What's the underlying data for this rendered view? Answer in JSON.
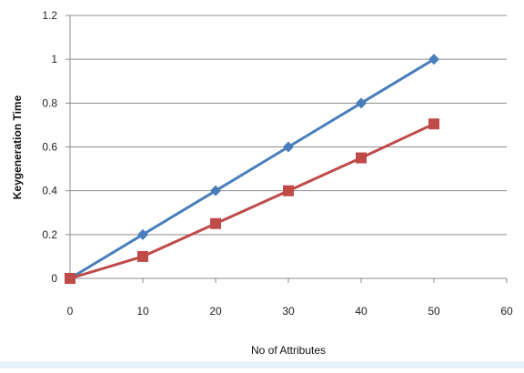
{
  "chart_data": {
    "type": "line",
    "title": "",
    "xlabel": "No of Attributes",
    "ylabel": "Keygeneration Time",
    "xlim": [
      0,
      60
    ],
    "ylim": [
      0,
      1.2
    ],
    "x_ticks": [
      "0",
      "10",
      "20",
      "30",
      "40",
      "50",
      "60"
    ],
    "y_ticks": [
      "0",
      "0.2",
      "0.4",
      "0.6",
      "0.8",
      "1",
      "1.2"
    ],
    "grid": "horizontal",
    "legend": "none",
    "series": [
      {
        "color": "#4a7ebb",
        "marker": "diamond",
        "x": [
          0,
          10,
          20,
          30,
          40,
          50
        ],
        "y": [
          0,
          0.2,
          0.4,
          0.6,
          0.8,
          1.0
        ]
      },
      {
        "color": "#be4b48",
        "marker": "square",
        "x": [
          0,
          10,
          20,
          30,
          40,
          50
        ],
        "y": [
          0,
          0.1,
          0.25,
          0.4,
          0.55,
          0.705
        ]
      }
    ]
  }
}
